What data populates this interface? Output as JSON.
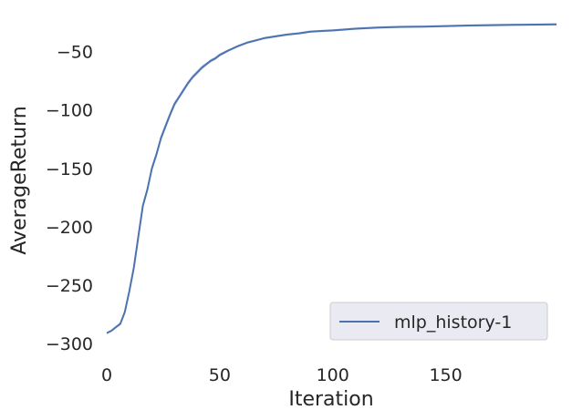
{
  "chart_data": {
    "type": "line",
    "title": "",
    "xlabel": "Iteration",
    "ylabel": "AverageReturn",
    "xlim": [
      0,
      199
    ],
    "ylim": [
      -310,
      -20
    ],
    "xticks": [
      0,
      50,
      100,
      150
    ],
    "yticks": [
      -300,
      -250,
      -200,
      -150,
      -100,
      -50
    ],
    "ytick_labels": [
      "−300",
      "−250",
      "−200",
      "−150",
      "−100",
      "−50"
    ],
    "grid": false,
    "legend": {
      "position": "lower-right",
      "entries": [
        "mlp_history-1"
      ]
    },
    "colors": {
      "line": "#4c72b0",
      "band": "#c9d3e8",
      "legend_bg": "#eaeaf2"
    },
    "series": [
      {
        "name": "mlp_history-1",
        "x": [
          0,
          2,
          4,
          6,
          8,
          10,
          12,
          14,
          16,
          18,
          20,
          22,
          24,
          26,
          28,
          30,
          32,
          34,
          36,
          38,
          40,
          42,
          44,
          46,
          48,
          50,
          54,
          58,
          62,
          66,
          70,
          75,
          80,
          85,
          90,
          95,
          100,
          110,
          120,
          130,
          140,
          150,
          160,
          170,
          180,
          190,
          199
        ],
        "y": [
          -291,
          -289,
          -286,
          -283,
          -273,
          -255,
          -235,
          -208,
          -182,
          -168,
          -150,
          -138,
          -124,
          -114,
          -104,
          -95,
          -89,
          -83,
          -77,
          -72,
          -68,
          -64,
          -61,
          -58,
          -56,
          -53,
          -49,
          -45.5,
          -42.5,
          -40.5,
          -38.5,
          -37,
          -35.5,
          -34.5,
          -33,
          -32.5,
          -32,
          -30.5,
          -29.5,
          -29,
          -28.7,
          -28.3,
          -27.8,
          -27.5,
          -27.2,
          -27,
          -26.8
        ],
        "band_halfwidth": [
          1,
          1,
          1,
          1.5,
          2,
          3,
          3,
          3,
          3,
          3,
          3,
          3,
          3,
          3,
          2.5,
          2.5,
          2,
          2,
          2,
          2,
          2,
          2,
          1.5,
          1.5,
          1.5,
          1.5,
          1,
          1,
          1,
          1,
          1,
          1,
          1,
          1,
          1,
          1,
          1,
          1,
          1,
          1,
          1,
          1,
          1,
          1,
          1,
          1,
          1
        ]
      }
    ]
  }
}
